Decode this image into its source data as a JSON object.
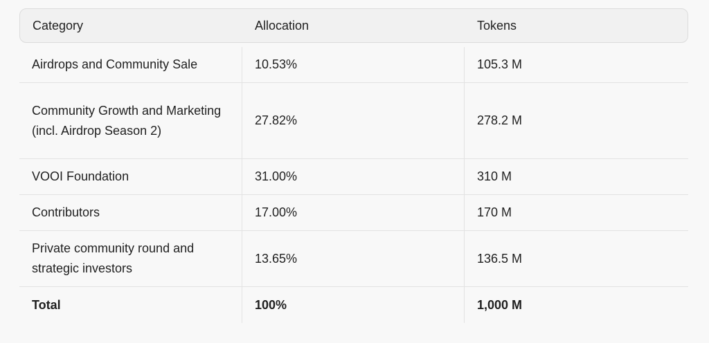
{
  "table": {
    "headers": [
      "Category",
      "Allocation",
      "Tokens"
    ],
    "rows": [
      [
        "Airdrops and Community Sale",
        "10.53%",
        "105.3 M"
      ],
      [
        "Community Growth and Marketing (incl. Airdrop Season 2)",
        "27.82%",
        "278.2 M"
      ],
      [
        "VOOI Foundation",
        "31.00%",
        "310 M"
      ],
      [
        "Contributors",
        "17.00%",
        "170 M"
      ],
      [
        "Private community round and strategic investors",
        "13.65%",
        "136.5 M"
      ],
      [
        "Total",
        "100%",
        "1,000 M"
      ]
    ]
  }
}
